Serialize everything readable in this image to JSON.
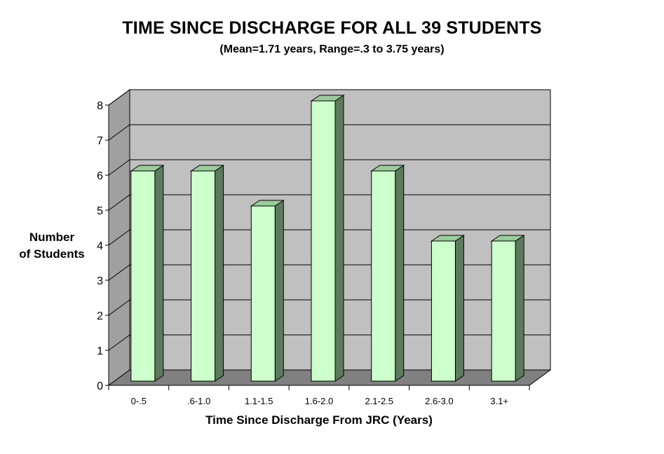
{
  "chart_data": {
    "type": "bar",
    "title": "TIME SINCE DISCHARGE FOR ALL 39 STUDENTS",
    "subtitle": "(Mean=1.71 years, Range=.3 to 3.75 years)",
    "xlabel": "Time Since Discharge From JRC (Years)",
    "ylabel_line1": "Number",
    "ylabel_line2": "of Students",
    "categories": [
      "0-.5",
      ".6-1.0",
      "1.1-1.5",
      "1.6-2.0",
      "2.1-2.5",
      "2.6-3.0",
      "3.1+"
    ],
    "values": [
      6,
      6,
      5,
      8,
      6,
      4,
      4
    ],
    "ylim": [
      0,
      8
    ],
    "yticks": [
      "0",
      "1",
      "2",
      "3",
      "4",
      "5",
      "6",
      "7",
      "8"
    ],
    "grid": true,
    "style": "3d",
    "colors": {
      "bar_front": "#ccffcc",
      "bar_top": "#99cc99",
      "bar_side": "#5e7a5e",
      "back_wall": "#c0c0c0",
      "side_wall": "#a0a0a0",
      "floor": "#808080"
    }
  }
}
